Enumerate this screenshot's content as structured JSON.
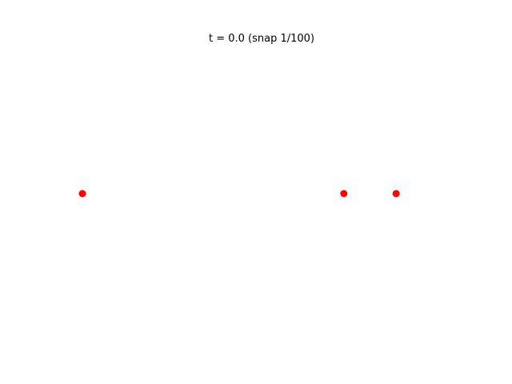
{
  "chart_data": {
    "type": "scatter",
    "title": "t = 0.0 (snap 1/100)",
    "xlabel": "",
    "ylabel": "",
    "axes_visible": false,
    "grid": false,
    "legend": "none",
    "xlim": [
      0,
      1
    ],
    "ylim": [
      -1,
      1
    ],
    "marker_color": "#ff0000",
    "series": [
      {
        "points": [
          {
            "x": 0.0,
            "y": 0.0
          },
          {
            "x": 0.8,
            "y": 0.0
          },
          {
            "x": 0.96,
            "y": 0.0
          }
        ]
      }
    ]
  }
}
